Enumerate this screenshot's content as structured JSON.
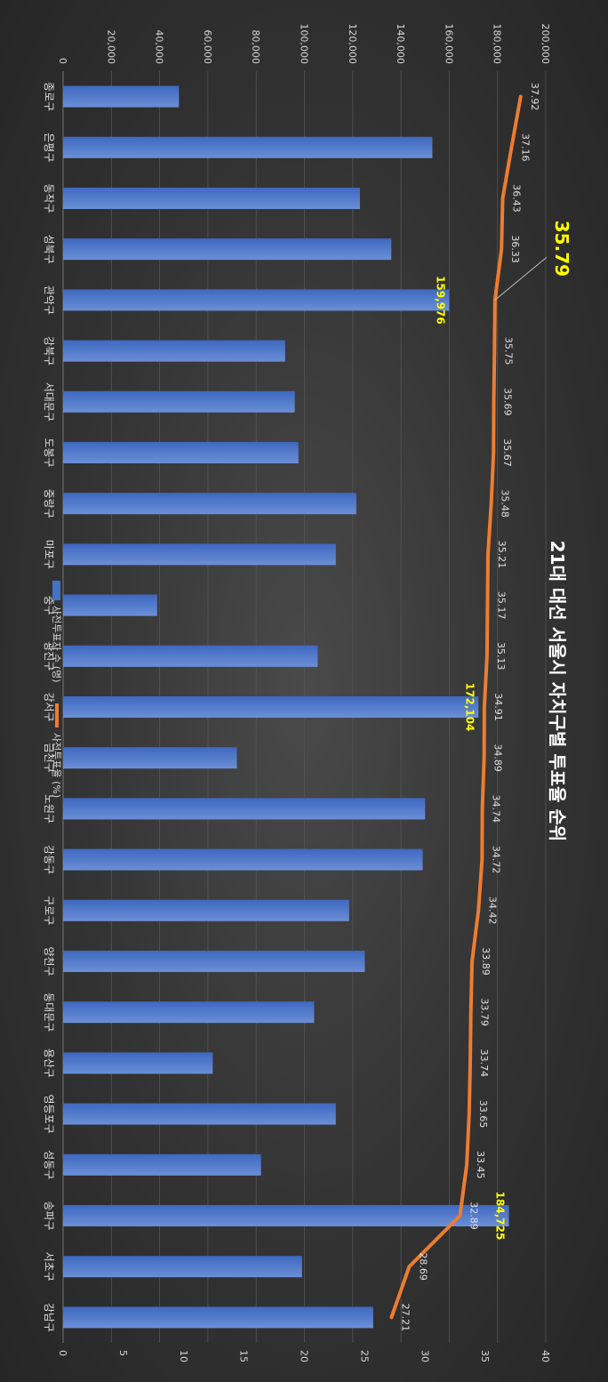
{
  "chart_data": {
    "type": "bar",
    "title": "21대 대선 서울시 자치구별 투표율 순위",
    "categories": [
      "종로구",
      "은평구",
      "동작구",
      "성북구",
      "관악구",
      "강북구",
      "서대문구",
      "도봉구",
      "중랑구",
      "마포구",
      "중구",
      "광진구",
      "강서구",
      "금천구",
      "노원구",
      "강동구",
      "구로구",
      "양천구",
      "동대문구",
      "용산구",
      "영등포구",
      "성동구",
      "송파구",
      "서초구",
      "강남구"
    ],
    "series": [
      {
        "name": "사전투표자 수 (명)",
        "type": "bar",
        "axis": "left",
        "color": "#4472c4",
        "values": [
          48000,
          153000,
          123000,
          136000,
          159976,
          92000,
          96000,
          97500,
          121500,
          113000,
          39000,
          105500,
          172104,
          72000,
          150000,
          149000,
          118500,
          125000,
          104000,
          62000,
          113000,
          82000,
          184725,
          99000,
          128500
        ]
      },
      {
        "name": "사전투표율 (%)",
        "type": "line",
        "axis": "right",
        "color": "#ed7d31",
        "values": [
          37.92,
          37.16,
          36.43,
          36.33,
          35.79,
          35.75,
          35.69,
          35.67,
          35.48,
          35.21,
          35.17,
          35.13,
          34.91,
          34.89,
          34.74,
          34.72,
          34.42,
          33.89,
          33.79,
          33.74,
          33.65,
          33.45,
          32.89,
          28.69,
          27.21
        ]
      }
    ],
    "left_axis": {
      "ylim": [
        0,
        200000
      ],
      "ticks": [
        "0",
        "20,000",
        "40,000",
        "60,000",
        "80,000",
        "100,000",
        "120,000",
        "140,000",
        "160,000",
        "180,000",
        "200,000"
      ]
    },
    "right_axis": {
      "ylim": [
        0,
        40
      ],
      "ticks": [
        "0",
        "5",
        "10",
        "15",
        "20",
        "25",
        "30",
        "35",
        "40"
      ]
    },
    "bar_highlight_labels": {
      "4": "159,976",
      "12": "172,104",
      "22": "184,725"
    },
    "line_value_labels": [
      "37.92",
      "37.16",
      "36.43",
      "36.33",
      "",
      "35.75",
      "35.69",
      "35.67",
      "35.48",
      "35.21",
      "35.17",
      "35.13",
      "34.91",
      "34.89",
      "34.74",
      "34.72",
      "34.42",
      "33.89",
      "33.79",
      "33.74",
      "33.65",
      "33.45",
      "32.89",
      "28.69",
      "27.21"
    ],
    "callout": {
      "index": 4,
      "text": "35.79"
    },
    "legend": {
      "placement": "bottom"
    },
    "grid": true
  }
}
